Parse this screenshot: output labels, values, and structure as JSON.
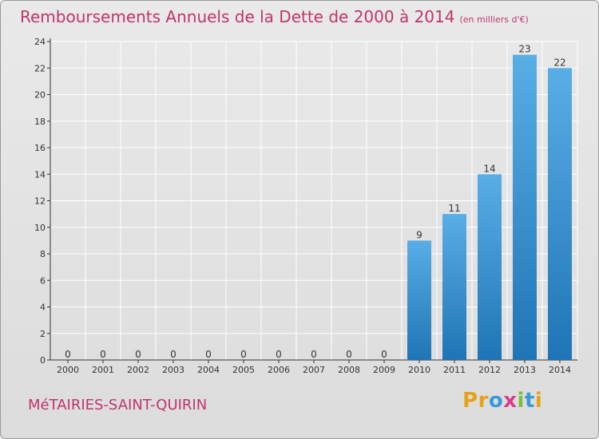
{
  "title": "Remboursements Annuels de la Dette de 2000 à 2014",
  "unit_label": "(en milliers d'€)",
  "commune": "MéTAIRIES-SAINT-QUIRIN",
  "brand": {
    "letters": [
      "P",
      "r",
      "o",
      "x",
      "i",
      "t",
      "i"
    ],
    "colors": [
      "#e8a21a",
      "#e8a21a",
      "#3a9ad8",
      "#d93d8a",
      "#7cbf3a",
      "#3a9ad8",
      "#e8a21a"
    ]
  },
  "colors": {
    "title": "#c0356b",
    "bar_light": "#5aaee6",
    "bar_dark": "#1f74b5",
    "grid": "#ffffff",
    "axis": "#333333"
  },
  "chart_data": {
    "type": "bar",
    "categories": [
      "2000",
      "2001",
      "2002",
      "2003",
      "2004",
      "2005",
      "2006",
      "2007",
      "2008",
      "2009",
      "2010",
      "2011",
      "2012",
      "2013",
      "2014"
    ],
    "values": [
      0,
      0,
      0,
      0,
      0,
      0,
      0,
      0,
      0,
      0,
      9,
      11,
      14,
      23,
      22
    ],
    "title": "Remboursements Annuels de la Dette de 2000 à 2014",
    "xlabel": "",
    "ylabel": "",
    "ylim": [
      0,
      24
    ],
    "yticks": [
      0,
      2,
      4,
      6,
      8,
      10,
      12,
      14,
      16,
      18,
      20,
      22,
      24
    ],
    "grid": true
  }
}
